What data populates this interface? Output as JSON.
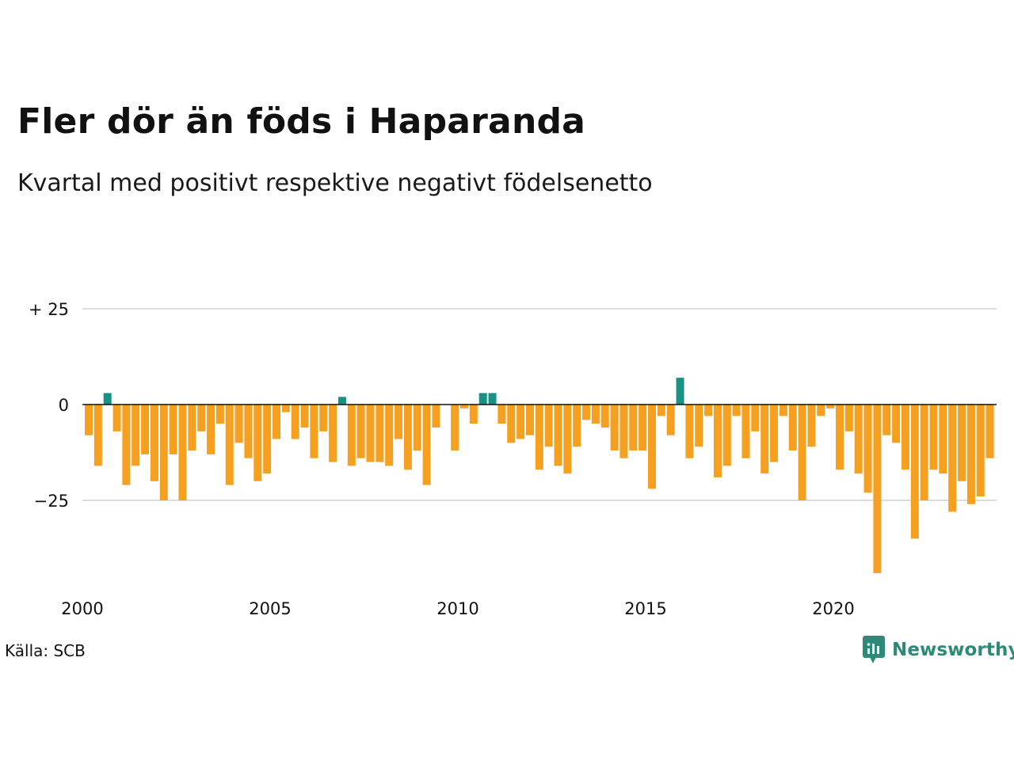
{
  "header": {
    "title": "Fler dör än föds i Haparanda",
    "subtitle": "Kvartal med positivt respektive negativt födelsenetto"
  },
  "footer": {
    "source": "Källa: SCB",
    "brand": "Newsworthy"
  },
  "colors": {
    "positive": "#1a9283",
    "negative": "#f5a020",
    "grid": "#dddddd",
    "zero_line": "#111111"
  },
  "chart_data": {
    "type": "bar",
    "x_start": "2000 Q1",
    "x_tick_labels": [
      "2000",
      "2005",
      "2010",
      "2015",
      "2020"
    ],
    "y_tick_labels": [
      "+ 25",
      "0",
      "−25"
    ],
    "y_ticks": [
      25,
      0,
      -25
    ],
    "ylim": [
      -44,
      25
    ],
    "grid": true,
    "values": [
      -8,
      -16,
      3,
      -7,
      -21,
      -16,
      -13,
      -20,
      -25,
      -13,
      -25,
      -12,
      -7,
      -13,
      -5,
      -21,
      -10,
      -14,
      -20,
      -18,
      -9,
      -2,
      -9,
      -6,
      -14,
      -7,
      -15,
      2,
      -16,
      -14,
      -15,
      -15,
      -16,
      -9,
      -17,
      -12,
      -21,
      -6,
      0,
      -12,
      -1,
      -5,
      3,
      3,
      -5,
      -10,
      -9,
      -8,
      -17,
      -11,
      -16,
      -18,
      -11,
      -4,
      -5,
      -6,
      -12,
      -14,
      -12,
      -12,
      -22,
      -3,
      -8,
      7,
      -14,
      -11,
      -3,
      -19,
      -16,
      -3,
      -14,
      -7,
      -18,
      -15,
      -3,
      -12,
      -25,
      -11,
      -3,
      -1,
      -17,
      -7,
      -18,
      -23,
      -44,
      -8,
      -10,
      -17,
      -35,
      -25,
      -17,
      -18,
      -28,
      -20,
      -26,
      -24,
      -14
    ]
  }
}
